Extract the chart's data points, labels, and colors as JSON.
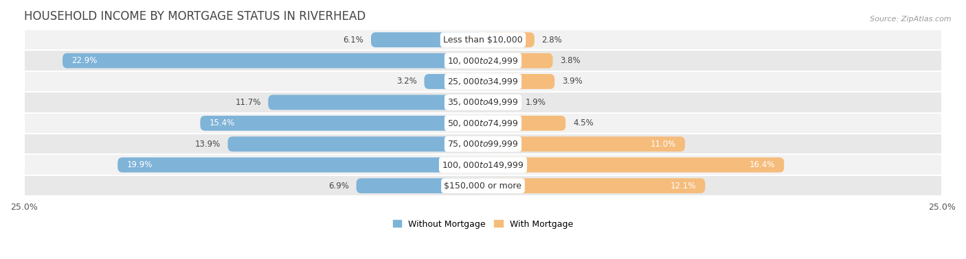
{
  "title": "HOUSEHOLD INCOME BY MORTGAGE STATUS IN RIVERHEAD",
  "source": "Source: ZipAtlas.com",
  "categories": [
    "Less than $10,000",
    "$10,000 to $24,999",
    "$25,000 to $34,999",
    "$35,000 to $49,999",
    "$50,000 to $74,999",
    "$75,000 to $99,999",
    "$100,000 to $149,999",
    "$150,000 or more"
  ],
  "without_mortgage": [
    6.1,
    22.9,
    3.2,
    11.7,
    15.4,
    13.9,
    19.9,
    6.9
  ],
  "with_mortgage": [
    2.8,
    3.8,
    3.9,
    1.9,
    4.5,
    11.0,
    16.4,
    12.1
  ],
  "color_without": "#7fb3d8",
  "color_with": "#f5bc7b",
  "row_colors": [
    "#f2f2f2",
    "#e8e8e8"
  ],
  "row_border": "#ffffff",
  "xlim": 25.0,
  "title_fontsize": 12,
  "cat_fontsize": 9,
  "val_fontsize": 8.5,
  "tick_fontsize": 9,
  "legend_fontsize": 9,
  "source_fontsize": 8
}
